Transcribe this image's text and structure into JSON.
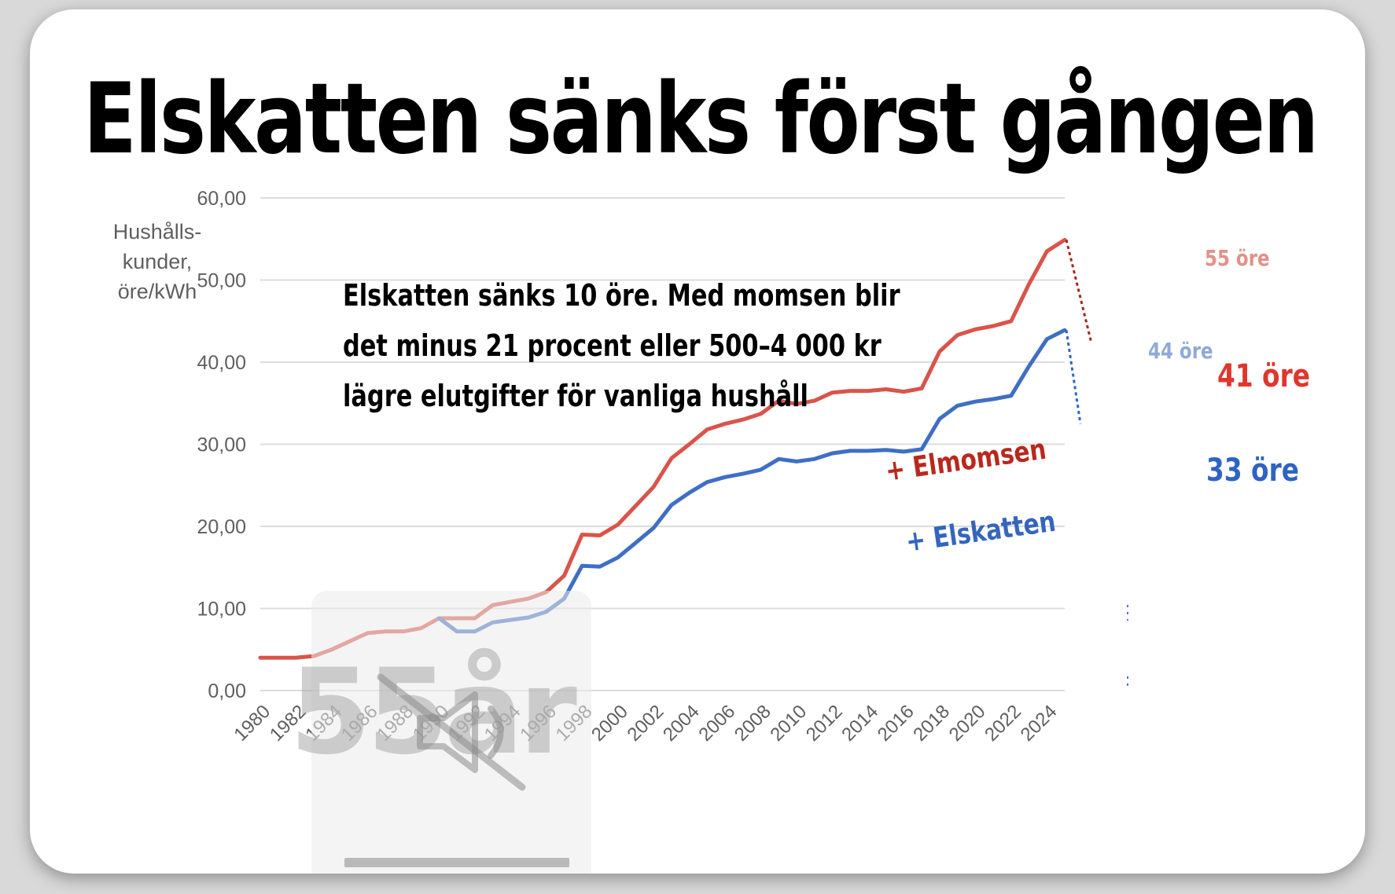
{
  "title": "Elskatten sänks först gången",
  "annotation": [
    "Elskatten sänks 10 öre. Med momsen blir",
    "det minus 21 procent eller 500–4 000 kr",
    "lägre elutgifter för vanliga hushåll"
  ],
  "overlay": {
    "text": "55år"
  },
  "chart_data": {
    "type": "line",
    "ylabel": [
      "Hushålls-",
      "kunder,",
      "öre/kWh"
    ],
    "ylim": [
      0,
      60
    ],
    "yticks": [
      "0,00",
      "10,00",
      "20,00",
      "30,00",
      "40,00",
      "50,00",
      "60,00"
    ],
    "xlim": [
      1980,
      2025
    ],
    "xticks": [
      "1980",
      "1982",
      "1984",
      "1986",
      "1988",
      "1990",
      "1992",
      "1994",
      "1996",
      "1998",
      "2000",
      "2002",
      "2004",
      "2006",
      "2008",
      "2010",
      "2012",
      "2014",
      "2016",
      "2018",
      "2020",
      "2022",
      "2024"
    ],
    "grid": true,
    "series": [
      {
        "name": "+ Elmomsen",
        "color": "#d9544a",
        "points": [
          [
            1980,
            4
          ],
          [
            1981,
            4
          ],
          [
            1982,
            4
          ],
          [
            1983,
            4.2
          ],
          [
            1984,
            5
          ],
          [
            1985,
            6
          ],
          [
            1986,
            7
          ],
          [
            1987,
            7.2
          ],
          [
            1988,
            7.2
          ],
          [
            1989,
            7.6
          ],
          [
            1990,
            8.8
          ],
          [
            1991,
            8.8
          ],
          [
            1992,
            8.8
          ],
          [
            1993,
            10.4
          ],
          [
            1994,
            10.8
          ],
          [
            1995,
            11.2
          ],
          [
            1996,
            12
          ],
          [
            1997,
            14
          ],
          [
            1998,
            19
          ],
          [
            1999,
            18.9
          ],
          [
            2000,
            20.2
          ],
          [
            2001,
            22.5
          ],
          [
            2002,
            24.8
          ],
          [
            2003,
            28.3
          ],
          [
            2004,
            30
          ],
          [
            2005,
            31.8
          ],
          [
            2006,
            32.5
          ],
          [
            2007,
            33
          ],
          [
            2008,
            33.7
          ],
          [
            2009,
            35.3
          ],
          [
            2010,
            34.9
          ],
          [
            2011,
            35.3
          ],
          [
            2012,
            36.3
          ],
          [
            2013,
            36.5
          ],
          [
            2014,
            36.5
          ],
          [
            2015,
            36.7
          ],
          [
            2016,
            36.4
          ],
          [
            2017,
            36.8
          ],
          [
            2018,
            41.3
          ],
          [
            2019,
            43.3
          ],
          [
            2020,
            44
          ],
          [
            2021,
            44.4
          ],
          [
            2022,
            45
          ],
          [
            2023,
            49.5
          ],
          [
            2024,
            53.5
          ],
          [
            2025,
            54.9
          ]
        ]
      },
      {
        "name": "+ Elskatten",
        "color": "#3f6fc4",
        "points": [
          [
            1990,
            8.8
          ],
          [
            1991,
            7.2
          ],
          [
            1992,
            7.2
          ],
          [
            1993,
            8.3
          ],
          [
            1994,
            8.6
          ],
          [
            1995,
            8.9
          ],
          [
            1996,
            9.6
          ],
          [
            1997,
            11.2
          ],
          [
            1998,
            15.2
          ],
          [
            1999,
            15.1
          ],
          [
            2000,
            16.2
          ],
          [
            2001,
            18
          ],
          [
            2002,
            19.8
          ],
          [
            2003,
            22.6
          ],
          [
            2004,
            24.1
          ],
          [
            2005,
            25.4
          ],
          [
            2006,
            26
          ],
          [
            2007,
            26.4
          ],
          [
            2008,
            26.9
          ],
          [
            2009,
            28.2
          ],
          [
            2010,
            27.9
          ],
          [
            2011,
            28.2
          ],
          [
            2012,
            28.9
          ],
          [
            2013,
            29.2
          ],
          [
            2014,
            29.2
          ],
          [
            2015,
            29.3
          ],
          [
            2016,
            29.1
          ],
          [
            2017,
            29.4
          ],
          [
            2018,
            33.1
          ],
          [
            2019,
            34.7
          ],
          [
            2020,
            35.2
          ],
          [
            2021,
            35.5
          ],
          [
            2022,
            35.9
          ],
          [
            2023,
            39.5
          ],
          [
            2024,
            42.8
          ],
          [
            2025,
            43.9
          ]
        ]
      }
    ],
    "end_labels": {
      "red_before": "55 öre",
      "blue_before": "44 öre",
      "red_after": "41 öre",
      "blue_after": "33 öre"
    },
    "after_values": {
      "red": 41,
      "blue": 33
    }
  }
}
